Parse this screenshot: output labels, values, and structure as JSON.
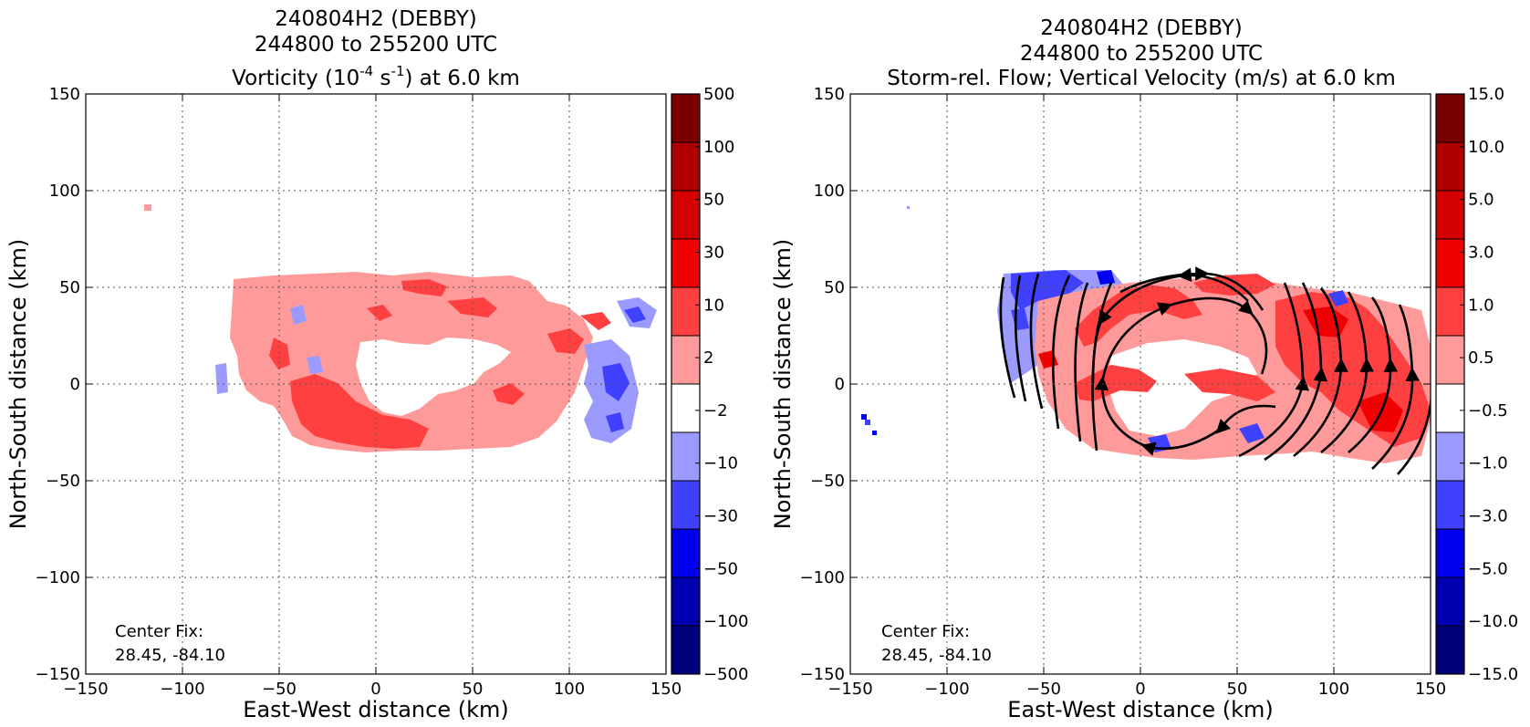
{
  "chart_data": [
    {
      "type": "heatmap",
      "title_lines": [
        "240804H2 (DEBBY)",
        "244800 to 255200 UTC"
      ],
      "title_field_parts": [
        "Vorticity (10",
        "-4",
        " s",
        "-1",
        ") at 6.0 km"
      ],
      "xlabel": "East-West distance (km)",
      "ylabel": "North-South distance (km)",
      "xlim": [
        -150,
        150
      ],
      "ylim": [
        -150,
        150
      ],
      "xticks": [
        "−150",
        "−100",
        "−50",
        "0",
        "50",
        "100",
        "150"
      ],
      "yticks": [
        "150",
        "100",
        "50",
        "0",
        "−50",
        "−100",
        "−150"
      ],
      "grid": true,
      "annotation": [
        "Center Fix:",
        "28.45, -84.10"
      ],
      "colorbar_labels": [
        "500",
        "100",
        "50",
        "30",
        "10",
        "2",
        "−2",
        "−10",
        "−30",
        "−50",
        "−100",
        "−500"
      ],
      "colorbar_colors": [
        "#7a0000",
        "#b00000",
        "#d40000",
        "#f00000",
        "#ff4040",
        "#ff9a9a",
        "#ffffff",
        "#9a9aff",
        "#4040ff",
        "#0000f0",
        "#0000b0",
        "#00007a"
      ]
    },
    {
      "type": "heatmap",
      "title_lines": [
        "240804H2 (DEBBY)",
        "244800 to 255200 UTC"
      ],
      "title_field": "Storm-rel. Flow; Vertical Velocity (m/s) at 6.0 km",
      "xlabel": "East-West distance (km)",
      "ylabel": "North-South distance (km)",
      "xlim": [
        -150,
        150
      ],
      "ylim": [
        -150,
        150
      ],
      "xticks": [
        "−150",
        "−100",
        "−50",
        "0",
        "50",
        "100",
        "150"
      ],
      "yticks": [
        "150",
        "100",
        "50",
        "0",
        "−50",
        "−100",
        "−150"
      ],
      "grid": true,
      "annotation": [
        "Center Fix:",
        "28.45, -84.10"
      ],
      "colorbar_labels": [
        "15.0",
        "10.0",
        "5.0",
        "3.0",
        "1.0",
        "0.5",
        "−0.5",
        "−1.0",
        "−3.0",
        "−5.0",
        "−10.0",
        "−15.0"
      ],
      "colorbar_colors": [
        "#7a0000",
        "#b00000",
        "#d40000",
        "#f00000",
        "#ff4040",
        "#ff9a9a",
        "#ffffff",
        "#9a9aff",
        "#4040ff",
        "#0000f0",
        "#0000b0",
        "#00007a"
      ]
    }
  ]
}
